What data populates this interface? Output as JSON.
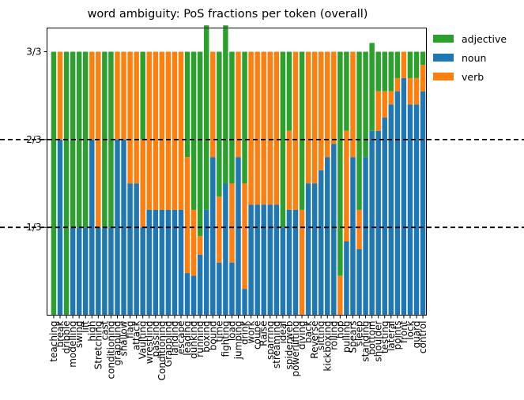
{
  "chart_data": {
    "type": "bar",
    "stacked": true,
    "title": "word ambiguity: PoS fractions per token (overall)",
    "xlabel": "",
    "ylabel": "",
    "ylim": [
      0,
      1
    ],
    "yticks": [
      {
        "value": 0.3333,
        "label": "1/3"
      },
      {
        "value": 0.6667,
        "label": "2/3"
      },
      {
        "value": 1.0,
        "label": "3/3"
      }
    ],
    "hlines": [
      0.3333,
      0.6667
    ],
    "grid": false,
    "legend_position": "top-right, outside plot",
    "categories": [
      "teaching",
      "break",
      "dribble",
      "modelling",
      "swing",
      "lift",
      "high",
      "Stretching",
      "cast",
      "conditioning",
      "grappling",
      "shallow",
      "flag",
      "attack",
      "Vaulting",
      "wrestling",
      "passing",
      "Conditioning",
      "Grappling",
      "landing",
      "escape",
      "leading",
      "dunking",
      "running",
      "boxing",
      "bound",
      "time",
      "fighting",
      "load",
      "jumping",
      "drink",
      "work",
      "coupe",
      "Raise",
      "sparring",
      "streaming",
      "ideal",
      "spiderweb",
      "powerlifting",
      "diving",
      "back",
      "Reverse",
      "sitting",
      "kickboxing",
      "rolling",
      "hop",
      "pulling",
      "Spears",
      "sleep",
      "standing",
      "bottom",
      "shoulder",
      "testing",
      "lateral",
      "points",
      "front",
      "lock",
      "guard",
      "control"
    ],
    "series": [
      {
        "name": "adjective",
        "color": "#2ca02c",
        "values": [
          1.0,
          0,
          1.0,
          0.6667,
          0.6667,
          0.6667,
          0,
          0,
          0.6667,
          0.6667,
          0,
          0,
          0,
          0,
          0.3333,
          0,
          0,
          0,
          0,
          0,
          0,
          0.4,
          0.6,
          0.7,
          0.7,
          0,
          0.55,
          0.6,
          0.5,
          0,
          0.5,
          0,
          0,
          0,
          0,
          0,
          0.6667,
          0.3,
          0,
          0.6,
          0,
          0,
          0,
          0,
          0,
          0.85,
          0.3,
          0,
          0.6,
          0.4,
          0.3333,
          0.15,
          0.15,
          0.15,
          0.1,
          0,
          0.1,
          0.1,
          0.05
        ]
      },
      {
        "name": "noun",
        "color": "#1f77b4",
        "values": [
          0,
          0.6667,
          0,
          0.3333,
          0.3333,
          0.3333,
          0.6667,
          0.3333,
          0.3333,
          0.3333,
          0.6667,
          0.6667,
          0.5,
          0.5,
          0.3333,
          0.4,
          0.4,
          0.4,
          0.4,
          0.4,
          0.4,
          0.16,
          0.15,
          0.23,
          0.4,
          0.6,
          0.2,
          0.5,
          0.2,
          0.6,
          0.1,
          0.42,
          0.42,
          0.42,
          0.42,
          0.42,
          0.3333,
          0.4,
          0.4,
          0,
          0.5,
          0.5,
          0.55,
          0.6,
          0.65,
          0,
          0.28,
          0.6,
          0.25,
          0.6,
          0.7,
          0.7,
          0.75,
          0.8,
          0.85,
          0.9,
          0.8,
          0.8,
          0.85
        ]
      },
      {
        "name": "verb",
        "color": "#ff7f0e",
        "values": [
          0,
          0.3333,
          0,
          0,
          0,
          0,
          0.3333,
          0.6667,
          0,
          0,
          0.3333,
          0.3333,
          0.5,
          0.5,
          0.3333,
          0.6,
          0.6,
          0.6,
          0.6,
          0.6,
          0.6,
          0.44,
          0.25,
          0.07,
          0,
          0.4,
          0.25,
          0,
          0.3,
          0.4,
          0.4,
          0.58,
          0.58,
          0.58,
          0.58,
          0.58,
          0,
          0.3,
          0.6,
          0.4,
          0.5,
          0.5,
          0.45,
          0.4,
          0.35,
          0.15,
          0.42,
          0.4,
          0.15,
          0,
          0,
          0.15,
          0.1,
          0.05,
          0.05,
          0.1,
          0.1,
          0.1,
          0.1
        ]
      }
    ]
  }
}
